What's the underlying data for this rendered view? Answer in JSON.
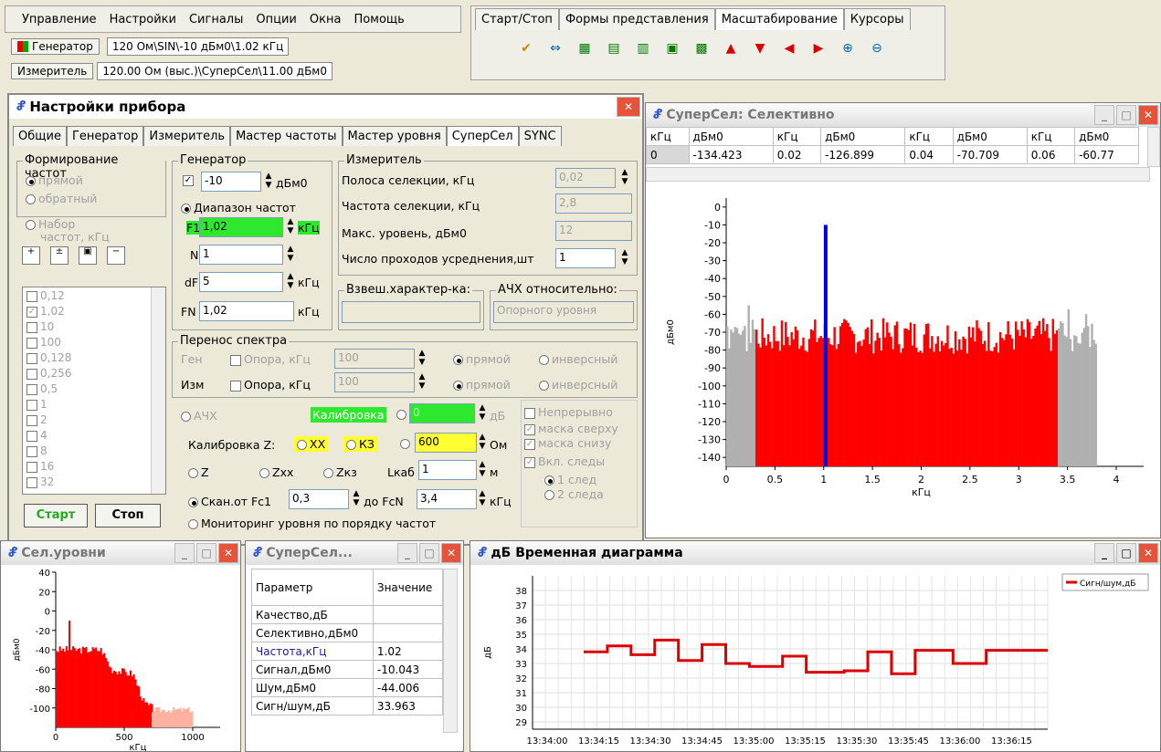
{
  "menu": [
    "Управление",
    "Настройки",
    "Сигналы",
    "Опции",
    "Окна",
    "Помощь"
  ],
  "generator": {
    "label": "Генератор",
    "value": "120 Ом\\SIN\\-10 дБм0\\1.02 кГц"
  },
  "meter": {
    "label": "Измеритель",
    "value": "120.00 Ом (выс.)\\СуперСел\\11.00 дБм0"
  },
  "toolbar_tabs": [
    "Старт/Стоп",
    "Формы представления",
    "Масштабирование",
    "Курсоры"
  ],
  "toolbar_active_tab": 2,
  "dialog": {
    "title": "Настройки прибора",
    "tabs": [
      "Общие",
      "Генератор",
      "Измеритель",
      "Мастер частоты",
      "Мастер уровня",
      "СуперСел",
      "SYNC"
    ],
    "active_tab": 5,
    "freq_form": {
      "legend": "Формирование частот",
      "direct": "прямой",
      "reverse": "обратный",
      "set_label": "Набор",
      "set_label2": "частот, кГц"
    },
    "freq_list": [
      "0,12",
      "1,02",
      "10",
      "100",
      "0,128",
      "0,256",
      "0,5",
      "1",
      "2",
      "4",
      "8",
      "16",
      "32"
    ],
    "gen": {
      "legend": "Генератор",
      "level": "-10",
      "unit": "дБм0",
      "range_label": "Диапазон частот",
      "f1_label": "F1",
      "f1": "1,02",
      "khz": "кГц",
      "n_label": "N",
      "n": "1",
      "df_label": "dF",
      "df": "5",
      "fn_label": "FN",
      "fn": "1,02"
    },
    "meas": {
      "legend": "Измеритель",
      "band_label": "Полоса селекции, кГц",
      "band": "0,02",
      "freq_label": "Частота селекции, кГц",
      "freq": "2,8",
      "max_label": "Макс. уровень, дБм0",
      "max": "12",
      "passes_label": "Число проходов усреднения,шт",
      "passes": "1"
    },
    "weight_legend": "Взвеш.характер-ка:",
    "afc_legend": "АЧХ относительно:",
    "afc_value": "Опорного уровня",
    "shift": {
      "legend": "Перенос спектра",
      "gen": "Ген",
      "meas": "Изм",
      "ref": "Опора, кГц",
      "val": "100",
      "direct": "прямой",
      "inverse": "инверсный"
    },
    "afc_radio": "АЧХ",
    "calib": {
      "label": "Калибровка",
      "value": "0",
      "unit": "дБ"
    },
    "continuous": "Непрерывно",
    "mask_top": "маска сверху",
    "mask_bottom": "маска снизу",
    "traces": "Вкл. следы",
    "trace1": "1 след",
    "trace2": "2 следа",
    "calz": {
      "label": "Калибровка Z:",
      "xx": "XX",
      "kz": "КЗ",
      "value": "600",
      "unit": "Ом"
    },
    "zrow": {
      "z": "Z",
      "zxx": "Zхх",
      "zkz": "Zкз",
      "lcab": "Lкаб",
      "val": "1",
      "unit": "м"
    },
    "scan": {
      "label": "Скан.от Fc1",
      "from": "0,3",
      "to_label": "до FcN",
      "to": "3,4",
      "unit": "кГц"
    },
    "monitor": "Мониторинг уровня по порядку частот",
    "start": "Старт",
    "stop": "Стоп"
  },
  "supersel_window": {
    "title": "СуперСел: Селективно",
    "headers": [
      "кГц",
      "дБм0",
      "кГц",
      "дБм0",
      "кГц",
      "дБм0",
      "кГц",
      "дБм0"
    ],
    "row": [
      "0",
      "-134.423",
      "0.02",
      "-126.899",
      "0.04",
      "-70.709",
      "0.06",
      "-60.77"
    ]
  },
  "levels_window": {
    "title": "Сел.уровни"
  },
  "params_window": {
    "title": "СуперСел...",
    "headers": [
      "Параметр",
      "Значение"
    ],
    "rows": [
      [
        "Качество,дБ",
        ""
      ],
      [
        "Селективно,дБм0",
        ""
      ],
      [
        "Частота,кГц",
        "1.02"
      ],
      [
        "Сигнал,дБм0",
        "-10.043"
      ],
      [
        "Шум,дБм0",
        "-44.006"
      ],
      [
        "Сигн/шум,дБ",
        "33.963"
      ]
    ]
  },
  "time_window": {
    "title": "дБ Временная диаграмма"
  },
  "chart_data": [
    {
      "type": "bar",
      "title": "",
      "xlabel": "кГц",
      "ylabel": "дБм0",
      "xlim": [
        0,
        4
      ],
      "ylim": [
        -145,
        5
      ],
      "xticks": [
        "0",
        "0.5",
        "1",
        "1.5",
        "2",
        "2.5",
        "3",
        "3.5",
        "4"
      ],
      "yticks": [
        "0",
        "-10",
        "-20",
        "-30",
        "-40",
        "-50",
        "-60",
        "-70",
        "-80",
        "-90",
        "-100",
        "-110",
        "-120",
        "-130",
        "-140"
      ],
      "series": [
        {
          "color": "#b0b0b0",
          "range": [
            0,
            0.3
          ],
          "level": -70
        },
        {
          "color": "#ff0000",
          "range": [
            0.3,
            3.4
          ],
          "level": -72
        },
        {
          "color": "#b0b0b0",
          "range": [
            3.4,
            3.8
          ],
          "level": -72
        },
        {
          "color": "#0000dd",
          "x": 1.02,
          "value": -10
        }
      ]
    },
    {
      "type": "bar",
      "xlabel": "кГц",
      "ylabel": "дБм0",
      "xlim": [
        0,
        1200
      ],
      "ylim": [
        -120,
        40
      ],
      "xticks": [
        "0",
        "500",
        "1000"
      ],
      "yticks": [
        "40",
        "20",
        "0",
        "-20",
        "-40",
        "-60",
        "-80",
        "-100"
      ],
      "series": [
        {
          "color": "#ff0000",
          "range": [
            0,
            700
          ],
          "profile": [
            [
              0,
              -40
            ],
            [
              330,
              -40
            ],
            [
              400,
              -60
            ],
            [
              560,
              -65
            ],
            [
              640,
              -95
            ],
            [
              700,
              -100
            ]
          ]
        },
        {
          "color": "#ffb0a0",
          "range": [
            700,
            1000
          ],
          "level": -102
        }
      ]
    },
    {
      "type": "line",
      "ylabel": "дБ",
      "ylim": [
        28.5,
        39
      ],
      "yticks": [
        "38",
        "37",
        "36",
        "35",
        "34",
        "33",
        "32",
        "31",
        "30",
        "29"
      ],
      "x": [
        "13:34:00",
        "13:34:15",
        "13:34:30",
        "13:34:45",
        "13:35:00",
        "13:35:15",
        "13:35:30",
        "13:35:45",
        "13:36:00",
        "13:36:15"
      ],
      "series": [
        {
          "name": "Сигн/шум,дБ",
          "color": "#dd0000",
          "steps": [
            [
              0,
              33.8
            ],
            [
              0.5,
              34.2
            ],
            [
              1.0,
              33.6
            ],
            [
              1.5,
              34.6
            ],
            [
              2.0,
              33.2
            ],
            [
              2.5,
              34.3
            ],
            [
              3.0,
              33.0
            ],
            [
              3.5,
              32.8
            ],
            [
              4.2,
              33.5
            ],
            [
              4.7,
              32.4
            ],
            [
              5.5,
              32.5
            ],
            [
              6.0,
              33.8
            ],
            [
              6.5,
              32.3
            ],
            [
              7.0,
              33.9
            ],
            [
              7.8,
              33.0
            ],
            [
              8.5,
              33.9
            ]
          ],
          "tmax": 9.8
        }
      ]
    }
  ]
}
